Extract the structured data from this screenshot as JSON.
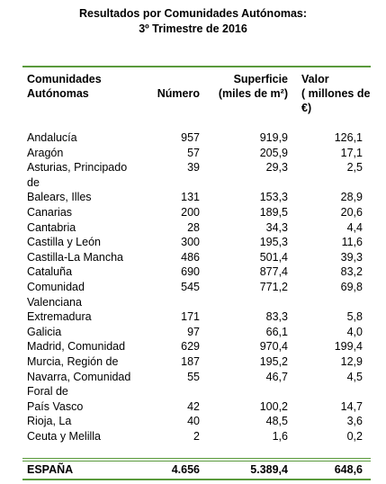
{
  "title": [
    "Resultados por Comunidades Autónomas:",
    "3º Trimestre de 2016"
  ],
  "table": {
    "header": [
      [
        "Comunidades",
        "Autónomas"
      ],
      [
        "Número"
      ],
      [
        "Superficie",
        "(miles de m²)"
      ],
      [
        "Valor",
        "( millones de",
        "€)"
      ]
    ],
    "rows": [
      [
        "Andalucía",
        "957",
        "919,9",
        "126,1"
      ],
      [
        "Aragón",
        "57",
        "205,9",
        "17,1"
      ],
      [
        "Asturias, Principado de",
        "39",
        "29,3",
        "2,5"
      ],
      [
        "Balears, Illes",
        "131",
        "153,3",
        "28,9"
      ],
      [
        "Canarias",
        "200",
        "189,5",
        "20,6"
      ],
      [
        "Cantabria",
        "28",
        "34,3",
        "4,4"
      ],
      [
        "Castilla y León",
        "300",
        "195,3",
        "11,6"
      ],
      [
        "Castilla-La Mancha",
        "486",
        "501,4",
        "39,3"
      ],
      [
        "Cataluña",
        "690",
        "877,4",
        "83,2"
      ],
      [
        "Comunidad Valenciana",
        "545",
        "771,2",
        "69,8"
      ],
      [
        "Extremadura",
        "171",
        "83,3",
        "5,8"
      ],
      [
        "Galicia",
        "97",
        "66,1",
        "4,0"
      ],
      [
        "Madrid, Comunidad",
        "629",
        "970,4",
        "199,4"
      ],
      [
        "Murcia, Región de",
        "187",
        "195,2",
        "12,9"
      ],
      [
        "Navarra, Comunidad Foral de",
        "55",
        "46,7",
        "4,5"
      ],
      [
        "País Vasco",
        "42",
        "100,2",
        "14,7"
      ],
      [
        "Rioja, La",
        "40",
        "48,5",
        "3,6"
      ],
      [
        "Ceuta y Melilla",
        "2",
        "1,6",
        "0,2"
      ]
    ],
    "total": [
      "ESPAÑA",
      "4.656",
      "5.389,4",
      "648,6"
    ]
  }
}
